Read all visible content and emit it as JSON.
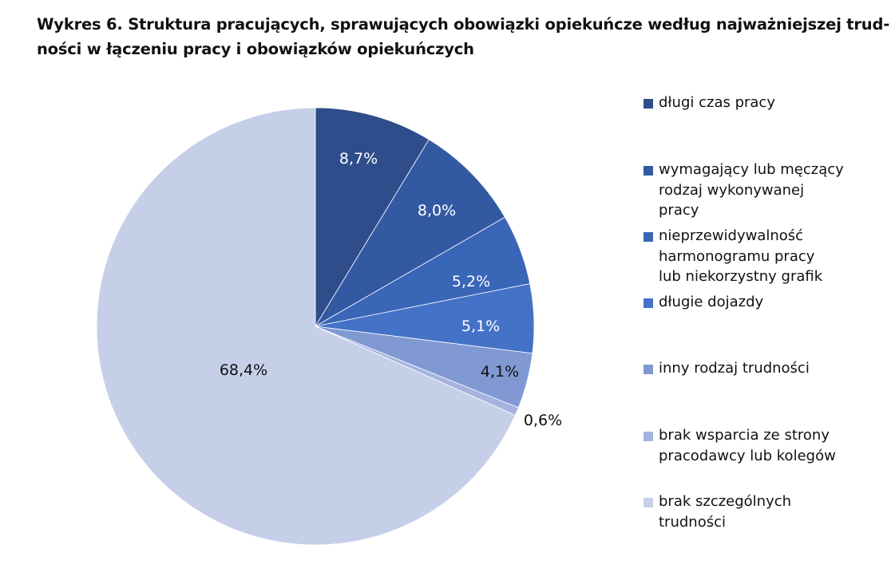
{
  "title": {
    "line1": "Wykres 6. Struktura pracujących, sprawujących obowiązki opiekuńcze według najważniejszej trud-",
    "line2": "ności w łączeniu pracy i obowiązków opiekuńczych"
  },
  "chart_data": {
    "type": "pie",
    "start_angle_deg": 0,
    "direction": "clockwise",
    "legend_position": "right",
    "slices": [
      {
        "name": "długi czas pracy",
        "value": 8.7,
        "label": "8,7%",
        "color": "#2E4D8A",
        "label_color": "#ffffff"
      },
      {
        "name": "wymagający lub męczący\nrodzaj wykonywanej\npracy",
        "value": 8.0,
        "label": "8,0%",
        "color": "#3359A3",
        "label_color": "#ffffff"
      },
      {
        "name": "nieprzewidywalność\nharmonogramu pracy\nlub niekorzystny grafik",
        "value": 5.2,
        "label": "5,2%",
        "color": "#3A66B8",
        "label_color": "#ffffff"
      },
      {
        "name": "długie dojazdy",
        "value": 5.1,
        "label": "5,1%",
        "color": "#4472C7",
        "label_color": "#ffffff"
      },
      {
        "name": "inny rodzaj trudności",
        "value": 4.1,
        "label": "4,1%",
        "color": "#8199D3",
        "label_color": "#111111"
      },
      {
        "name": "brak wsparcia ze strony\npracodawcy lub kolegów",
        "value": 0.6,
        "label": "0,6%",
        "color": "#A5B4DF",
        "label_color": "#111111"
      },
      {
        "name": "brak szczególnych\ntrudności",
        "value": 68.4,
        "label": "68,4%",
        "color": "#C5CFE8",
        "label_color": "#111111"
      }
    ]
  }
}
